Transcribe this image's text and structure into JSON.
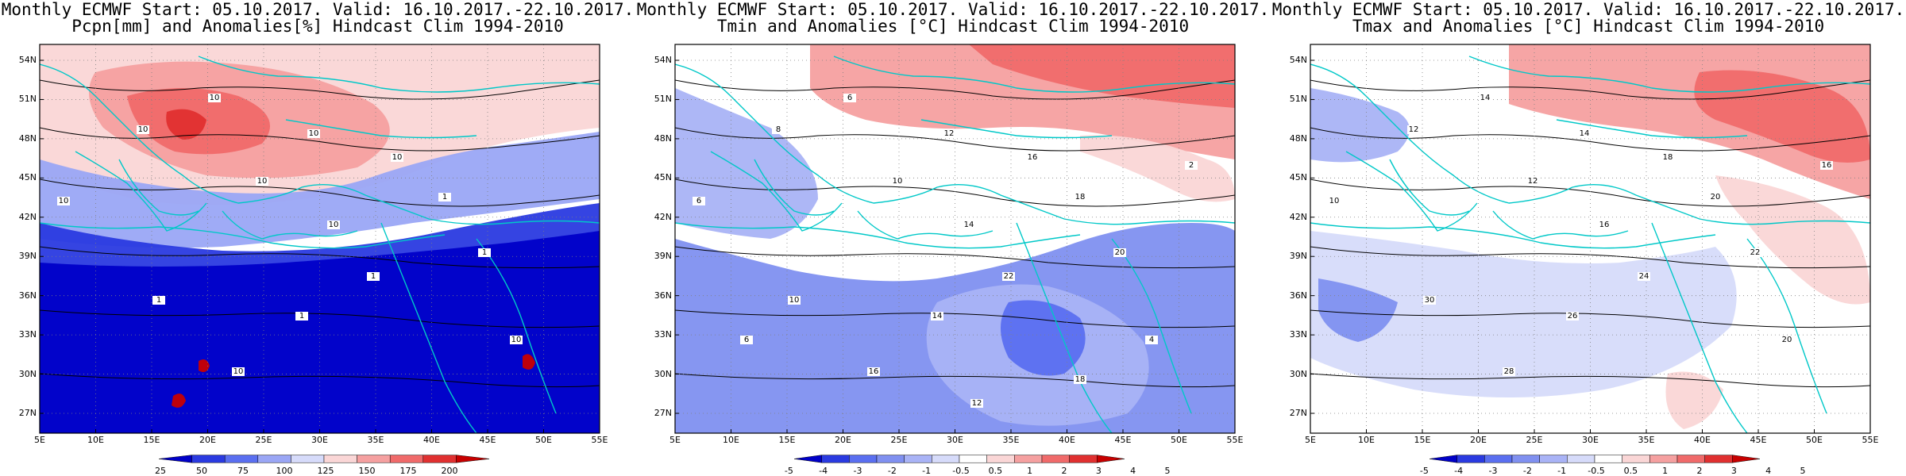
{
  "panels": [
    {
      "title_line1": "Monthly ECMWF Start: 05.10.2017. Valid: 16.10.2017.-22.10.2017.",
      "title_line2": "Pcpn[mm] and Anomalies[%] Hindcast Clim 1994-2010",
      "variable": "precipitation",
      "colorbar_labels": [
        "25",
        "50",
        "75",
        "100",
        "125",
        "150",
        "175",
        "200"
      ],
      "colorbar_colors": [
        "#0000c8",
        "#2a3ae0",
        "#5a6ff0",
        "#9aa6f5",
        "#d6dbfa",
        "#fad6d6",
        "#f5a0a0",
        "#f06a6a",
        "#e03030",
        "#c80000"
      ],
      "contour_labels": [
        "10",
        "10",
        "10",
        "10",
        "10",
        "10",
        "10",
        "1",
        "1",
        "1",
        "1",
        "10",
        "1",
        "10"
      ]
    },
    {
      "title_line1": "Monthly ECMWF Start: 05.10.2017. Valid: 16.10.2017.-22.10.2017.",
      "title_line2": "Tmin and Anomalies [°C] Hindcast Clim 1994-2010",
      "variable": "tmin",
      "colorbar_labels": [
        "-5",
        "-4",
        "-3",
        "-2",
        "-1",
        "-0.5",
        "0.5",
        "1",
        "2",
        "3",
        "4",
        "5"
      ],
      "colorbar_colors": [
        "#0000c8",
        "#2a3ae0",
        "#5a6ff0",
        "#8090f0",
        "#a9b3f6",
        "#d6dbfa",
        "#ffffff",
        "#fad6d6",
        "#f5a0a0",
        "#f06a6a",
        "#e03030",
        "#c80000"
      ],
      "contour_labels": [
        "6",
        "8",
        "6",
        "10",
        "12",
        "14",
        "16",
        "18",
        "20",
        "22",
        "14",
        "16",
        "10",
        "4",
        "2",
        "6",
        "18",
        "12"
      ]
    },
    {
      "title_line1": "Monthly ECMWF Start: 05.10.2017. Valid: 16.10.2017.-22.10.2017.",
      "title_line2": "Tmax and Anomalies [°C] Hindcast Clim 1994-2010",
      "variable": "tmax",
      "colorbar_labels": [
        "-5",
        "-4",
        "-3",
        "-2",
        "-1",
        "-0.5",
        "0.5",
        "1",
        "2",
        "3",
        "4",
        "5"
      ],
      "colorbar_colors": [
        "#0000c8",
        "#2a3ae0",
        "#5a6ff0",
        "#8090f0",
        "#a9b3f6",
        "#d6dbfa",
        "#ffffff",
        "#fad6d6",
        "#f5a0a0",
        "#f06a6a",
        "#e03030",
        "#c80000"
      ],
      "contour_labels": [
        "10",
        "12",
        "14",
        "12",
        "14",
        "16",
        "18",
        "20",
        "22",
        "24",
        "26",
        "28",
        "30",
        "20",
        "16"
      ]
    }
  ],
  "axes": {
    "lat_labels": [
      "54N",
      "51N",
      "48N",
      "45N",
      "42N",
      "39N",
      "36N",
      "33N",
      "30N",
      "27N"
    ],
    "lon_labels": [
      "5E",
      "10E",
      "15E",
      "20E",
      "25E",
      "30E",
      "35E",
      "40E",
      "45E",
      "50E",
      "55E"
    ]
  },
  "colors": {
    "coastline": "#00c8c8",
    "contour": "#000000",
    "background": "#ffffff"
  }
}
